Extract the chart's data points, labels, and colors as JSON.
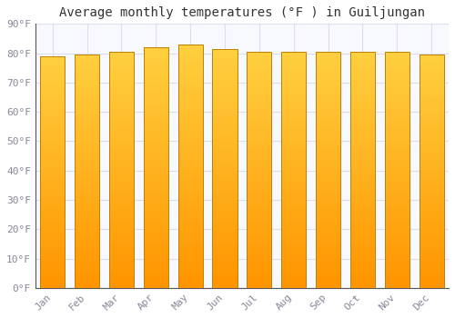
{
  "title": "Average monthly temperatures (°F ) in Guiljungan",
  "months": [
    "Jan",
    "Feb",
    "Mar",
    "Apr",
    "May",
    "Jun",
    "Jul",
    "Aug",
    "Sep",
    "Oct",
    "Nov",
    "Dec"
  ],
  "values": [
    79,
    79.5,
    80.5,
    82,
    83,
    81.5,
    80.5,
    80.5,
    80.5,
    80.5,
    80.5,
    79.5
  ],
  "ylim": [
    0,
    90
  ],
  "yticks": [
    0,
    10,
    20,
    30,
    40,
    50,
    60,
    70,
    80,
    90
  ],
  "bar_color_top": "#FFD040",
  "bar_color_bottom": "#FF9500",
  "bar_edge_color": "#BF8000",
  "background_color": "#FFFFFF",
  "plot_bg_color": "#F8F8FF",
  "grid_color": "#DDDDEE",
  "title_fontsize": 10,
  "tick_fontsize": 8,
  "font_family": "monospace",
  "tick_color": "#888899",
  "bar_width": 0.72
}
